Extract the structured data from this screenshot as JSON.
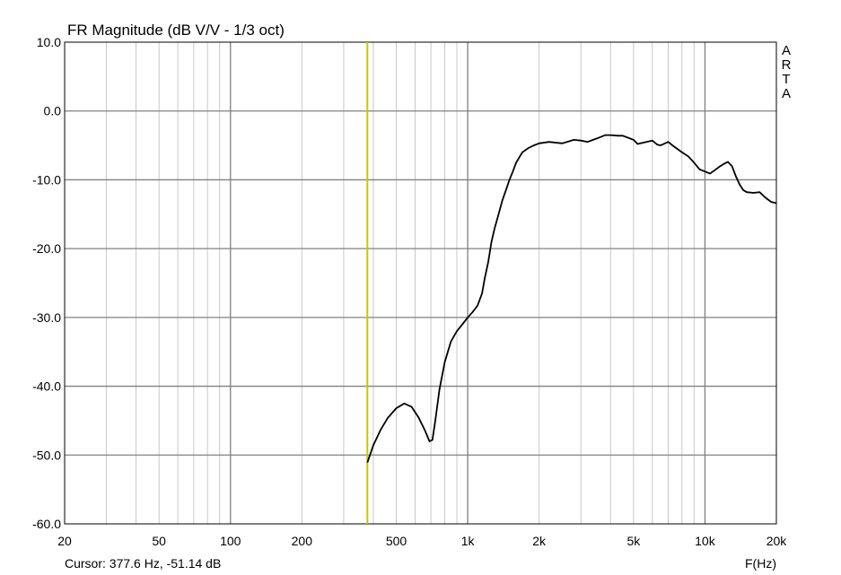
{
  "chart_data": {
    "type": "line",
    "title": "FR Magnitude (dB V/V - 1/3 oct)",
    "side_label": [
      "A",
      "R",
      "T",
      "A"
    ],
    "xlabel": "F(Hz)",
    "ylabel": "",
    "xscale": "log",
    "xlim": [
      20,
      20000
    ],
    "ylim": [
      -60,
      10
    ],
    "grid": true,
    "y_ticks": [
      {
        "value": 10,
        "label": "10.0"
      },
      {
        "value": 0,
        "label": "0.0"
      },
      {
        "value": -10,
        "label": "-10.0"
      },
      {
        "value": -20,
        "label": "-20.0"
      },
      {
        "value": -30,
        "label": "-30.0"
      },
      {
        "value": -40,
        "label": "-40.0"
      },
      {
        "value": -50,
        "label": "-50.0"
      },
      {
        "value": -60,
        "label": "-60.0"
      }
    ],
    "x_ticks": [
      {
        "value": 20,
        "label": "20"
      },
      {
        "value": 50,
        "label": "50"
      },
      {
        "value": 100,
        "label": "100"
      },
      {
        "value": 200,
        "label": "200"
      },
      {
        "value": 500,
        "label": "500"
      },
      {
        "value": 1000,
        "label": "1k"
      },
      {
        "value": 2000,
        "label": "2k"
      },
      {
        "value": 5000,
        "label": "5k"
      },
      {
        "value": 10000,
        "label": "10k"
      },
      {
        "value": 20000,
        "label": "20k"
      }
    ],
    "cursor": {
      "freq": 377.6,
      "db": -51.14,
      "text": "Cursor: 377.6 Hz, -51.14 dB"
    },
    "series": [
      {
        "x": [
          377.6,
          400,
          430,
          460,
          500,
          540,
          580,
          620,
          660,
          690,
          710,
          730,
          760,
          800,
          850,
          900,
          950,
          1000,
          1050,
          1100,
          1150,
          1180,
          1220,
          1260,
          1300,
          1350,
          1400,
          1450,
          1500,
          1550,
          1600,
          1700,
          1800,
          1900,
          2000,
          2200,
          2500,
          2800,
          3000,
          3200,
          3500,
          3800,
          4000,
          4300,
          4500,
          5000,
          5200,
          5500,
          6000,
          6300,
          6500,
          7000,
          7300,
          8000,
          8500,
          9000,
          9500,
          10000,
          10500,
          11000,
          11500,
          12000,
          12500,
          13000,
          13500,
          14000,
          14500,
          15000,
          16000,
          17000,
          18000,
          19000,
          20000
        ],
        "y": [
          -51.1,
          -48.6,
          -46.3,
          -44.6,
          -43.2,
          -42.5,
          -43.0,
          -44.5,
          -46.4,
          -48.0,
          -47.8,
          -45.0,
          -40.5,
          -36.5,
          -33.5,
          -32.0,
          -31.0,
          -30.0,
          -29.2,
          -28.3,
          -26.5,
          -24.3,
          -22.0,
          -19.0,
          -17.0,
          -15.0,
          -13.0,
          -11.5,
          -10.0,
          -8.8,
          -7.5,
          -6.0,
          -5.4,
          -5.0,
          -4.7,
          -4.5,
          -4.7,
          -4.2,
          -4.3,
          -4.5,
          -4.0,
          -3.5,
          -3.5,
          -3.6,
          -3.6,
          -4.2,
          -4.8,
          -4.6,
          -4.3,
          -4.9,
          -5.0,
          -4.5,
          -5.0,
          -6.0,
          -6.6,
          -7.5,
          -8.5,
          -8.8,
          -9.1,
          -8.6,
          -8.1,
          -7.7,
          -7.4,
          -8.0,
          -9.5,
          -10.7,
          -11.5,
          -11.8,
          -11.9,
          -11.8,
          -12.6,
          -13.2,
          -13.4
        ]
      }
    ]
  }
}
